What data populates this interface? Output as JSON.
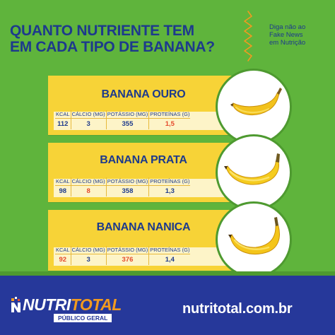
{
  "title": {
    "line1": "QUANTO NUTRIENTE TEM",
    "line2": "EM CADA TIPO DE BANANA?"
  },
  "tagline": {
    "line1": "Diga não ao",
    "line2": "Fake News",
    "line3": "em Nutrição"
  },
  "table_headers": [
    "KCAL",
    "CÁLCIO (MG)",
    "POTÁSSIO (MG)",
    "PROTEÍNAS (G)"
  ],
  "bananas": [
    {
      "name": "BANANA OURO",
      "kcal": "112",
      "calcio": "3",
      "potassio": "355",
      "proteinas": "1,5",
      "highlight": "proteinas"
    },
    {
      "name": "BANANA PRATA",
      "kcal": "98",
      "calcio": "8",
      "potassio": "358",
      "proteinas": "1,3",
      "highlight": "calcio"
    },
    {
      "name": "BANANA NANICA",
      "kcal": "92",
      "calcio": "3",
      "potassio": "376",
      "proteinas": "1,4",
      "highlight": "kcal,potassio"
    }
  ],
  "footer": {
    "brand_part1": "NUTRI",
    "brand_part2": "TOTAL",
    "brand_sub": "PÚBLICO GERAL",
    "site": "nutritotal.com.br"
  },
  "colors": {
    "background": "#5fb43c",
    "navy": "#1d3a8c",
    "card": "#f7d337",
    "highlight": "#e5492b",
    "footer": "#26389a",
    "orange": "#f29a1f"
  },
  "icons": [
    "zigzag-icon",
    "banana-icon",
    "nutritotal-logo-icon"
  ]
}
